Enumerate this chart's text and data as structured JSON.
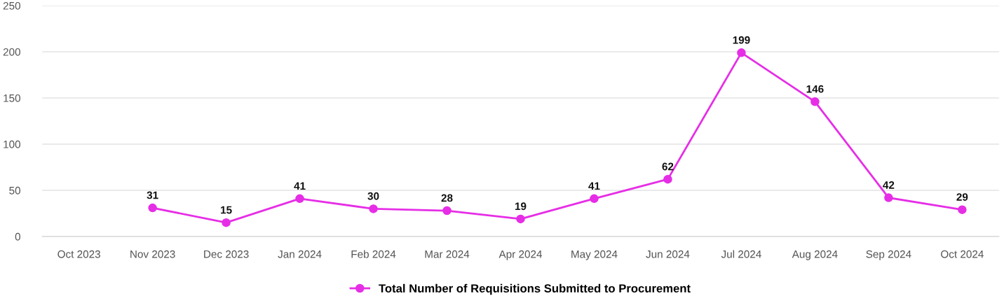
{
  "chart_data": {
    "type": "line",
    "categories": [
      "Oct 2023",
      "Nov 2023",
      "Dec 2023",
      "Jan 2024",
      "Feb 2024",
      "Mar 2024",
      "Apr 2024",
      "May 2024",
      "Jun 2024",
      "Jul 2024",
      "Aug 2024",
      "Sep 2024",
      "Oct 2024"
    ],
    "series": [
      {
        "name": "Total Number of Requisitions Submitted to Procurement",
        "color": "#e62ee6",
        "values": [
          null,
          31,
          15,
          41,
          30,
          28,
          19,
          41,
          62,
          199,
          146,
          42,
          29
        ]
      }
    ],
    "ylim": [
      0,
      250
    ],
    "yticks": [
      0,
      50,
      100,
      150,
      200,
      250
    ],
    "grid": "y",
    "legend": "bottom",
    "marker": "circle",
    "line_style": "solid",
    "data_labels": true
  }
}
